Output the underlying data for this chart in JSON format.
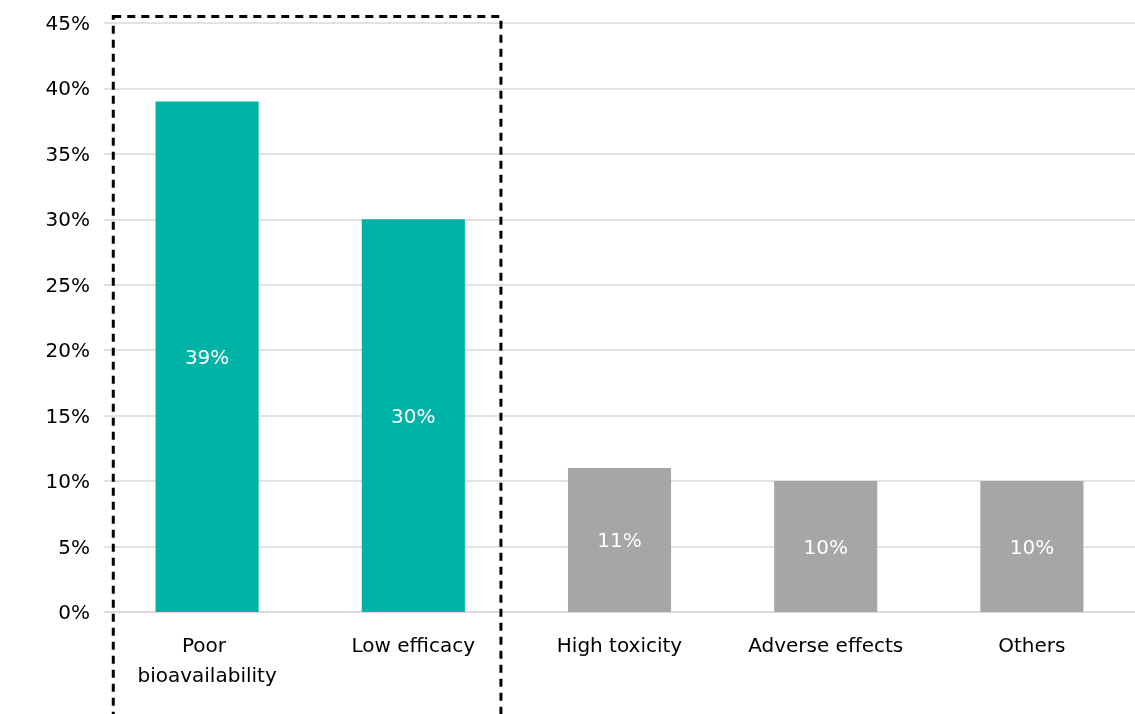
{
  "chart_data": {
    "type": "bar",
    "categories": [
      "Poor bioavailability",
      "Low efficacy",
      "High toxicity",
      "Adverse effects",
      "Others"
    ],
    "values": [
      39,
      30,
      11,
      10,
      10
    ],
    "colors": [
      "#00b3a7",
      "#00b3a7",
      "#a6a6a6",
      "#a6a6a6",
      "#a6a6a6"
    ],
    "value_labels": [
      "39%",
      "30%",
      "11%",
      "10%",
      "10%"
    ],
    "ylim": [
      0,
      45
    ],
    "yticks": [
      {
        "value": 0,
        "label": "0%"
      },
      {
        "value": 5,
        "label": "5%"
      },
      {
        "value": 10,
        "label": "10%"
      },
      {
        "value": 15,
        "label": "15%"
      },
      {
        "value": 20,
        "label": "20%"
      },
      {
        "value": 25,
        "label": "25%"
      },
      {
        "value": 30,
        "label": "30%"
      },
      {
        "value": 35,
        "label": "35%"
      },
      {
        "value": 40,
        "label": "40%"
      },
      {
        "value": 45,
        "label": "45%"
      }
    ],
    "grid": "y"
  }
}
